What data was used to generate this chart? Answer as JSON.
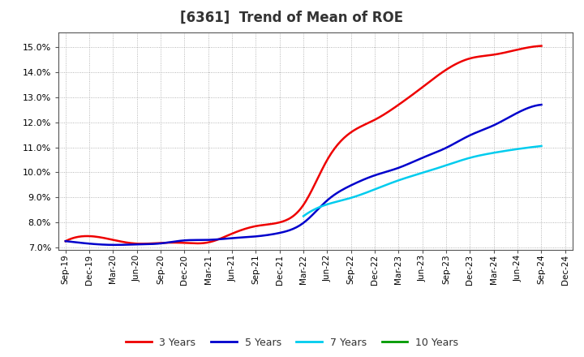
{
  "title": "[6361]  Trend of Mean of ROE",
  "background_color": "#ffffff",
  "plot_bg_color": "#ffffff",
  "grid_color": "#999999",
  "ylim": [
    0.069,
    0.156
  ],
  "yticks": [
    0.07,
    0.08,
    0.09,
    0.1,
    0.11,
    0.12,
    0.13,
    0.14,
    0.15
  ],
  "x_labels": [
    "Sep-19",
    "Dec-19",
    "Mar-20",
    "Jun-20",
    "Sep-20",
    "Dec-20",
    "Mar-21",
    "Jun-21",
    "Sep-21",
    "Dec-21",
    "Mar-22",
    "Jun-22",
    "Sep-22",
    "Dec-22",
    "Mar-23",
    "Jun-23",
    "Sep-23",
    "Dec-23",
    "Mar-24",
    "Jun-24",
    "Sep-24",
    "Dec-24"
  ],
  "series_3y": {
    "color": "#ee0000",
    "label": "3 Years",
    "x": [
      0,
      1,
      2,
      3,
      4,
      5,
      6,
      7,
      8,
      9,
      10,
      11,
      12,
      13,
      14,
      15,
      16,
      17,
      18,
      19,
      20
    ],
    "y": [
      0.0725,
      0.0745,
      0.073,
      0.0715,
      0.0718,
      0.0718,
      0.072,
      0.0755,
      0.0785,
      0.08,
      0.087,
      0.105,
      0.116,
      0.121,
      0.127,
      0.134,
      0.141,
      0.1455,
      0.147,
      0.149,
      0.1505
    ]
  },
  "series_5y": {
    "color": "#0000cc",
    "label": "5 Years",
    "x": [
      0,
      1,
      2,
      3,
      4,
      5,
      6,
      7,
      8,
      9,
      10,
      11,
      12,
      13,
      14,
      15,
      16,
      17,
      18,
      19,
      20
    ],
    "y": [
      0.0725,
      0.0715,
      0.071,
      0.0712,
      0.0716,
      0.0728,
      0.073,
      0.0737,
      0.0744,
      0.0758,
      0.0798,
      0.0888,
      0.0948,
      0.0988,
      0.1018,
      0.1058,
      0.1098,
      0.1148,
      0.1188,
      0.1238,
      0.127
    ]
  },
  "series_7y": {
    "color": "#00ccee",
    "label": "7 Years",
    "x": [
      10,
      11,
      12,
      13,
      14,
      15,
      16,
      17,
      18,
      19,
      20
    ],
    "y": [
      0.0825,
      0.0872,
      0.0898,
      0.0932,
      0.0968,
      0.0998,
      0.1028,
      0.1058,
      0.1078,
      0.1093,
      0.1105
    ]
  },
  "series_10y": {
    "color": "#009900",
    "label": "10 Years",
    "x": [],
    "y": []
  },
  "legend_colors": [
    "#ee0000",
    "#0000cc",
    "#00ccee",
    "#009900"
  ],
  "legend_labels": [
    "3 Years",
    "5 Years",
    "7 Years",
    "10 Years"
  ],
  "title_fontsize": 12,
  "tick_fontsize": 8,
  "legend_fontsize": 9
}
